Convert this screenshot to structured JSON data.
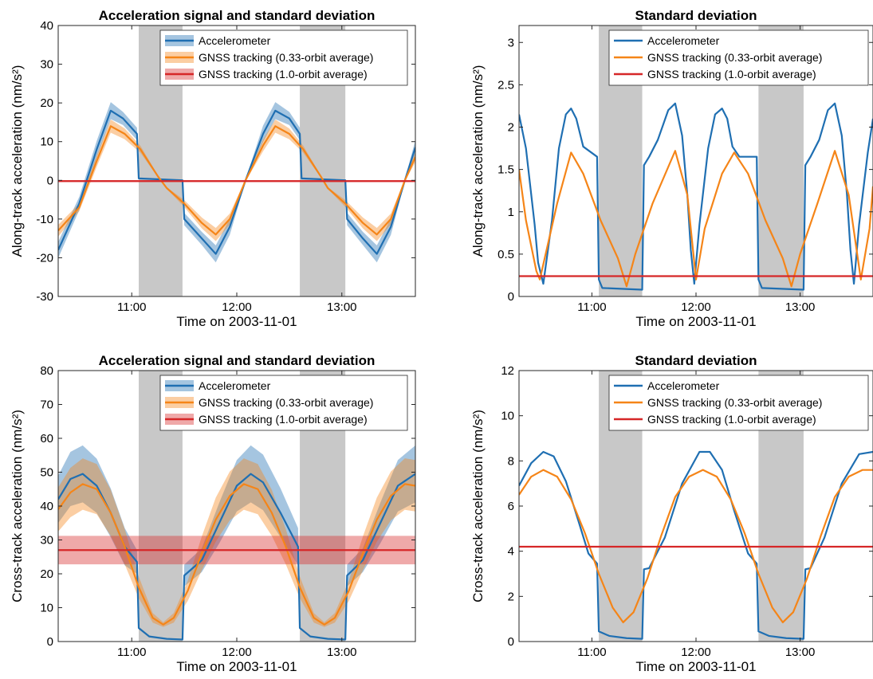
{
  "colors": {
    "blue": "#1f6fb2",
    "orange": "#f58518",
    "red": "#d62728",
    "shade": "#c8c8c8"
  },
  "chart_data": [
    {
      "type": "line",
      "title": "Acceleration signal and standard deviation",
      "xlabel": "Time on 2003-11-01",
      "ylabel": "Along-track acceleration (nm/s²)",
      "xlim": [
        "10:18",
        "13:42"
      ],
      "ylim": [
        -30,
        40
      ],
      "xticks": [
        "11:00",
        "12:00",
        "13:00"
      ],
      "yticks": [
        "-30",
        "-20",
        "-10",
        "0",
        "10",
        "20",
        "30",
        "40"
      ],
      "shaded_intervals": [
        [
          "11:04",
          "11:29"
        ],
        [
          "12:36",
          "13:02"
        ]
      ],
      "legend_position": "top",
      "series": [
        {
          "name": "Accelerometer",
          "color": "#1f6fb2",
          "band": true,
          "x": [
            "10:18",
            "10:30",
            "10:40",
            "10:48",
            "10:55",
            "11:03",
            "11:04",
            "11:29",
            "11:30",
            "11:40",
            "11:48",
            "11:56",
            "12:05",
            "12:15",
            "12:22",
            "12:30",
            "12:36",
            "12:37",
            "13:02",
            "13:03",
            "13:12",
            "13:20",
            "13:28",
            "13:36",
            "13:42"
          ],
          "y": [
            -18,
            -6,
            8,
            18,
            16,
            12,
            0.5,
            0,
            -10,
            -15,
            -19,
            -12,
            0,
            12,
            18,
            16,
            12,
            0.5,
            0,
            -10,
            -15,
            -19,
            -12,
            0,
            8.5
          ],
          "std": [
            2.1,
            1.7,
            2.2,
            2.2,
            1.7,
            1.6,
            0.1,
            0.1,
            1.6,
            1.7,
            2.2,
            2.1,
            0.2,
            2.1,
            2.2,
            1.7,
            1.6,
            0.1,
            0.1,
            1.6,
            1.7,
            2.2,
            2.1,
            0.2,
            1.9
          ]
        },
        {
          "name": "GNSS tracking (0.33-orbit average)",
          "color": "#f58518",
          "band": true,
          "x": [
            "10:18",
            "10:30",
            "10:40",
            "10:48",
            "10:56",
            "11:05",
            "11:15",
            "11:20",
            "11:30",
            "11:40",
            "11:48",
            "11:56",
            "12:05",
            "12:15",
            "12:22",
            "12:30",
            "12:38",
            "12:48",
            "12:52",
            "13:02",
            "13:12",
            "13:20",
            "13:28",
            "13:36",
            "13:42"
          ],
          "y": [
            -13,
            -7,
            5,
            14,
            12,
            8,
            1,
            -2,
            -6,
            -11,
            -14,
            -10,
            0,
            9,
            14,
            12,
            8,
            1,
            -2,
            -6,
            -11,
            -14,
            -10,
            0,
            6
          ],
          "std": [
            1.5,
            1.0,
            1.5,
            1.7,
            1.4,
            0.9,
            0.3,
            0.2,
            0.9,
            1.4,
            1.7,
            1.4,
            0.3,
            1.5,
            1.7,
            1.4,
            0.9,
            0.3,
            0.2,
            0.9,
            1.4,
            1.7,
            1.4,
            0.3,
            1.3
          ]
        },
        {
          "name": "GNSS tracking (1.0-orbit average)",
          "color": "#d62728",
          "band": true,
          "x": [
            "10:18",
            "13:42"
          ],
          "y": [
            -0.2,
            -0.2
          ],
          "std": [
            0.25,
            0.25
          ]
        }
      ]
    },
    {
      "type": "line",
      "title": "Standard deviation",
      "xlabel": "Time on 2003-11-01",
      "ylabel": "Along-track acceleration (nm/s²)",
      "xlim": [
        "10:18",
        "13:42"
      ],
      "ylim": [
        0,
        3.2
      ],
      "xticks": [
        "11:00",
        "12:00",
        "13:00"
      ],
      "yticks": [
        "0",
        "0.5",
        "1",
        "1.5",
        "2",
        "2.5",
        "3"
      ],
      "shaded_intervals": [
        [
          "11:04",
          "11:29"
        ],
        [
          "12:36",
          "13:02"
        ]
      ],
      "legend_position": "top",
      "series": [
        {
          "name": "Accelerometer",
          "color": "#1f6fb2",
          "x": [
            "10:18",
            "10:22",
            "10:27",
            "10:29",
            "10:32",
            "10:37",
            "10:41",
            "10:45",
            "10:48",
            "10:51",
            "10:55",
            "11:03",
            "11:04",
            "11:06",
            "11:29",
            "11:30",
            "11:33",
            "11:38",
            "11:44",
            "11:48",
            "11:52",
            "11:55",
            "11:57",
            "11:59",
            "12:02",
            "12:07",
            "12:11",
            "12:15",
            "12:18",
            "12:21",
            "12:25",
            "12:35",
            "12:36",
            "12:38",
            "13:02",
            "13:03",
            "13:06",
            "13:11",
            "13:16",
            "13:20",
            "13:24",
            "13:27",
            "13:29",
            "13:31",
            "13:34",
            "13:39",
            "13:42"
          ],
          "y": [
            2.15,
            1.75,
            0.85,
            0.4,
            0.15,
            0.9,
            1.75,
            2.15,
            2.22,
            2.1,
            1.77,
            1.65,
            0.2,
            0.1,
            0.08,
            1.55,
            1.65,
            1.85,
            2.2,
            2.28,
            1.9,
            1.2,
            0.55,
            0.15,
            0.85,
            1.75,
            2.15,
            2.22,
            2.1,
            1.77,
            1.65,
            1.65,
            0.2,
            0.1,
            0.08,
            1.55,
            1.65,
            1.85,
            2.2,
            2.28,
            1.9,
            1.2,
            0.55,
            0.15,
            0.85,
            1.7,
            2.1
          ]
        },
        {
          "name": "GNSS tracking (0.33-orbit average)",
          "color": "#f58518",
          "x": [
            "10:18",
            "10:22",
            "10:28",
            "10:30",
            "10:40",
            "10:48",
            "10:55",
            "11:05",
            "11:15",
            "11:20",
            "11:25",
            "11:35",
            "11:48",
            "11:55",
            "12:00",
            "12:05",
            "12:15",
            "12:22",
            "12:30",
            "12:40",
            "12:50",
            "12:55",
            "13:00",
            "13:10",
            "13:20",
            "13:28",
            "13:35",
            "13:40",
            "13:42"
          ],
          "y": [
            1.5,
            0.9,
            0.3,
            0.2,
            1.1,
            1.7,
            1.45,
            0.9,
            0.45,
            0.12,
            0.5,
            1.1,
            1.72,
            1.2,
            0.2,
            0.8,
            1.45,
            1.7,
            1.45,
            0.9,
            0.45,
            0.12,
            0.5,
            1.1,
            1.72,
            1.2,
            0.2,
            0.8,
            1.3
          ]
        },
        {
          "name": "GNSS tracking (1.0-orbit average)",
          "color": "#d62728",
          "x": [
            "10:18",
            "13:42"
          ],
          "y": [
            0.24,
            0.24
          ]
        }
      ]
    },
    {
      "type": "line",
      "title": "Acceleration signal and standard deviation",
      "xlabel": "Time on 2003-11-01",
      "ylabel": "Cross-track acceleration (nm/s²)",
      "xlim": [
        "10:18",
        "13:42"
      ],
      "ylim": [
        0,
        80
      ],
      "xticks": [
        "11:00",
        "12:00",
        "13:00"
      ],
      "yticks": [
        "0",
        "10",
        "20",
        "30",
        "40",
        "50",
        "60",
        "70",
        "80"
      ],
      "shaded_intervals": [
        [
          "11:04",
          "11:29"
        ],
        [
          "12:36",
          "13:02"
        ]
      ],
      "legend_position": "top",
      "series": [
        {
          "name": "Accelerometer",
          "color": "#1f6fb2",
          "band": true,
          "x": [
            "10:18",
            "10:25",
            "10:32",
            "10:40",
            "10:48",
            "10:56",
            "11:03",
            "11:04",
            "11:10",
            "11:20",
            "11:29",
            "11:30",
            "11:40",
            "11:50",
            "12:00",
            "12:08",
            "12:15",
            "12:25",
            "12:35",
            "12:36",
            "12:42",
            "12:52",
            "13:02",
            "13:03",
            "13:12",
            "13:22",
            "13:32",
            "13:42"
          ],
          "y": [
            42,
            48,
            49.5,
            46,
            38,
            28,
            23.5,
            4,
            1.5,
            0.8,
            0.6,
            19.5,
            24,
            35,
            46,
            49.5,
            47,
            38,
            28,
            4,
            1.5,
            0.8,
            0.6,
            19.5,
            24,
            35,
            46,
            49.5
          ],
          "std": [
            7,
            8,
            8.4,
            8.0,
            7.2,
            5.5,
            3.5,
            0.3,
            0.2,
            0.15,
            0.1,
            3.2,
            3.5,
            6,
            7.6,
            8.4,
            8.2,
            7.2,
            5.5,
            0.3,
            0.2,
            0.15,
            0.1,
            3.2,
            3.5,
            6,
            7.6,
            8.4
          ]
        },
        {
          "name": "GNSS tracking (0.33-orbit average)",
          "color": "#f58518",
          "band": true,
          "x": [
            "10:18",
            "10:25",
            "10:32",
            "10:40",
            "10:48",
            "10:56",
            "11:04",
            "11:12",
            "11:18",
            "11:24",
            "11:32",
            "11:40",
            "11:48",
            "11:56",
            "12:04",
            "12:12",
            "12:20",
            "12:28",
            "12:36",
            "12:44",
            "12:50",
            "12:56",
            "13:04",
            "13:12",
            "13:20",
            "13:28",
            "13:36",
            "13:42"
          ],
          "y": [
            39,
            44,
            46.5,
            45,
            38,
            28,
            16,
            7,
            5,
            7,
            15,
            26,
            36,
            43,
            46.5,
            45,
            38,
            28,
            16,
            7,
            5,
            7,
            15,
            26,
            36,
            43,
            46.5,
            46
          ],
          "std": [
            6.5,
            7.3,
            7.6,
            7.4,
            6.8,
            5.2,
            3.2,
            1.4,
            0.7,
            1.4,
            3,
            5,
            6.5,
            7.2,
            7.6,
            7.4,
            6.8,
            5.2,
            3.2,
            1.4,
            0.7,
            1.4,
            3,
            5,
            6.5,
            7.2,
            7.6,
            7.6
          ]
        },
        {
          "name": "GNSS tracking (1.0-orbit average)",
          "color": "#d62728",
          "band": true,
          "x": [
            "10:18",
            "13:42"
          ],
          "y": [
            27,
            27
          ],
          "std": [
            4.2,
            4.2
          ]
        }
      ]
    },
    {
      "type": "line",
      "title": "Standard deviation",
      "xlabel": "Time on 2003-11-01",
      "ylabel": "Cross-track acceleration (nm/s²)",
      "xlim": [
        "10:18",
        "13:42"
      ],
      "ylim": [
        0,
        12
      ],
      "xticks": [
        "11:00",
        "12:00",
        "13:00"
      ],
      "yticks": [
        "0",
        "2",
        "4",
        "6",
        "8",
        "10",
        "12"
      ],
      "shaded_intervals": [
        [
          "11:04",
          "11:29"
        ],
        [
          "12:36",
          "13:02"
        ]
      ],
      "legend_position": "top",
      "series": [
        {
          "name": "Accelerometer",
          "color": "#1f6fb2",
          "x": [
            "10:18",
            "10:25",
            "10:32",
            "10:38",
            "10:45",
            "10:52",
            "10:58",
            "11:03",
            "11:04",
            "11:10",
            "11:20",
            "11:29",
            "11:30",
            "11:33",
            "11:42",
            "11:52",
            "12:02",
            "12:08",
            "12:15",
            "12:22",
            "12:30",
            "12:35",
            "12:36",
            "12:42",
            "12:52",
            "13:02",
            "13:03",
            "13:06",
            "13:14",
            "13:24",
            "13:34",
            "13:42"
          ],
          "y": [
            6.9,
            7.9,
            8.4,
            8.2,
            7.1,
            5.4,
            3.9,
            3.45,
            0.45,
            0.25,
            0.15,
            0.12,
            3.2,
            3.25,
            4.6,
            7.0,
            8.4,
            8.4,
            7.6,
            5.8,
            3.9,
            3.45,
            0.45,
            0.25,
            0.15,
            0.12,
            3.2,
            3.25,
            4.6,
            7.0,
            8.3,
            8.4
          ]
        },
        {
          "name": "GNSS tracking (0.33-orbit average)",
          "color": "#f58518",
          "x": [
            "10:18",
            "10:25",
            "10:32",
            "10:40",
            "10:48",
            "10:56",
            "11:04",
            "11:12",
            "11:18",
            "11:24",
            "11:32",
            "11:40",
            "11:48",
            "11:56",
            "12:04",
            "12:12",
            "12:20",
            "12:28",
            "12:36",
            "12:44",
            "12:50",
            "12:56",
            "13:04",
            "13:12",
            "13:20",
            "13:28",
            "13:36",
            "13:42"
          ],
          "y": [
            6.5,
            7.3,
            7.6,
            7.3,
            6.3,
            4.8,
            3.0,
            1.5,
            0.85,
            1.3,
            2.8,
            4.7,
            6.4,
            7.3,
            7.6,
            7.3,
            6.3,
            4.8,
            3.0,
            1.5,
            0.85,
            1.3,
            2.8,
            4.7,
            6.4,
            7.3,
            7.6,
            7.6
          ]
        },
        {
          "name": "GNSS tracking (1.0-orbit average)",
          "color": "#d62728",
          "x": [
            "10:18",
            "13:42"
          ],
          "y": [
            4.2,
            4.2
          ]
        }
      ]
    }
  ]
}
